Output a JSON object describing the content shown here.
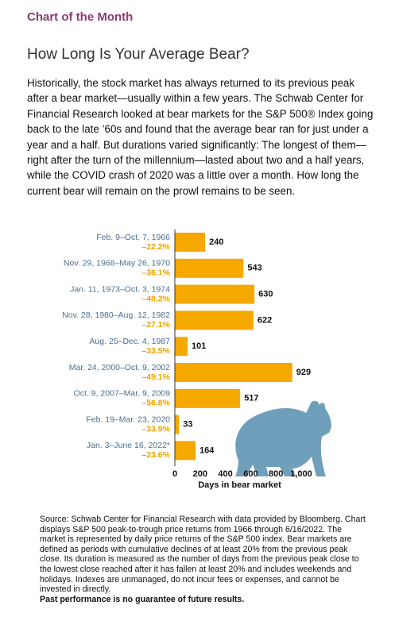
{
  "kicker": "Chart of the Month",
  "headline": "How Long Is Your Average Bear?",
  "body": "Historically, the stock market has always returned to its previous peak after a bear market—usually within a few years. The Schwab Center for Financial Research looked at bear markets for the S&P 500® Index going back to the late ’60s and found that the average bear ran for just under a year and a half. But durations varied significantly: The longest of them—right after the turn of the millennium—lasted about two and a half years, while the COVID crash of 2020 was a little over a month. How long the current bear will remain on the prowl remains to be seen.",
  "chart_data": {
    "type": "hbar",
    "categories": [
      "Feb. 9–Oct. 7, 1966",
      "Nov. 29, 1968–May 26, 1970",
      "Jan. 11, 1973–Oct. 3, 1974",
      "Nov. 28, 1980–Aug. 12, 1982",
      "Aug. 25–Dec. 4, 1987",
      "Mar. 24, 2000–Oct. 9, 2002",
      "Oct. 9, 2007–Mar. 9, 2009",
      "Feb. 19–Mar. 23, 2020",
      "Jan. 3–June 16, 2022*"
    ],
    "values": [
      240,
      543,
      630,
      622,
      101,
      929,
      517,
      33,
      164
    ],
    "color": "#f5a800",
    "returns": {
      "values": [
        -22.2,
        -36.1,
        -48.2,
        -27.1,
        -33.5,
        -49.1,
        -56.8,
        -33.9,
        -23.6
      ],
      "value_labels": [
        "–22.2%",
        "–36.1%",
        "–48.2%",
        "–27.1%",
        "–33.5%",
        "–49.1%",
        "–56.8%",
        "–33.9%",
        "–23.6%"
      ],
      "color": "#eea000"
    },
    "xlabel": "Days in bear market",
    "xlim": [
      0,
      1000
    ],
    "xticks": [
      0,
      200,
      400,
      600,
      800,
      {
        "value": 1000,
        "label": "1,000"
      }
    ]
  },
  "source": "Source: Schwab Center for Financial Research with data provided by Bloomberg. Chart displays S&P 500 peak-to-trough price returns from 1966 through 6/16/2022. The market is represented by daily price returns of the S&P 500 index. Bear markets are defined as periods with cumulative declines of at least 20% from the previous peak close. Its duration is measured as the number of days from the previous peak close to the lowest close reached after it has fallen at least 20% and includes weekends and holidays. Indexes are unmanaged, do not incur fees or expenses, and cannot be invested in directly.",
  "disclaimer": "Past performance is no guarantee of future results."
}
